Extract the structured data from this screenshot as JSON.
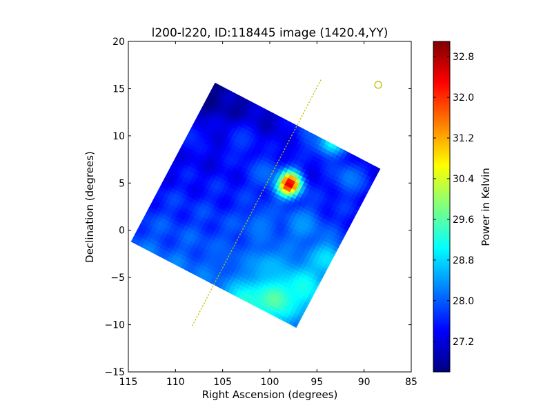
{
  "chart_data": {
    "type": "heatmap",
    "title": "l200-l220, ID:118445 image (1420.4,YY)",
    "xlabel": "Right Ascension (degrees)",
    "ylabel": "Declination (degrees)",
    "xlim": [
      115,
      85
    ],
    "ylim": [
      -15,
      20
    ],
    "xticks": [
      115,
      110,
      105,
      100,
      95,
      90,
      85
    ],
    "yticks": [
      -15,
      -10,
      -5,
      0,
      5,
      10,
      15,
      20
    ],
    "xtick_labels": [
      "115",
      "110",
      "105",
      "100",
      "95",
      "90",
      "85"
    ],
    "ytick_labels": [
      "−15",
      "−10",
      "−5",
      "0",
      "5",
      "10",
      "15",
      "20"
    ],
    "grid": false,
    "field_corners": [
      [
        105.8,
        15.6
      ],
      [
        88.3,
        6.5
      ],
      [
        97.3,
        -10.3
      ],
      [
        114.7,
        -1.2
      ]
    ],
    "hotspots": [
      {
        "ra": 98.0,
        "dec": 4.9,
        "value": 32.9,
        "sigma": 0.9
      },
      {
        "ra": 99.5,
        "dec": -7.0,
        "value": 29.9,
        "sigma": 1.6
      },
      {
        "ra": 96.5,
        "dec": -6.0,
        "value": 29.2,
        "sigma": 1.6
      },
      {
        "ra": 102.5,
        "dec": -7.5,
        "value": 29.3,
        "sigma": 1.4
      },
      {
        "ra": 93.5,
        "dec": 9.6,
        "value": 29.7,
        "sigma": 1.2
      },
      {
        "ra": 94.0,
        "dec": -3.0,
        "value": 28.9,
        "sigma": 1.3
      },
      {
        "ra": 100.0,
        "dec": -4.0,
        "value": 28.6,
        "sigma": 1.5
      },
      {
        "ra": 96.5,
        "dec": 0.5,
        "value": 28.4,
        "sigma": 1.4
      },
      {
        "ra": 101.0,
        "dec": 0.5,
        "value": 28.2,
        "sigma": 1.2
      },
      {
        "ra": 105.0,
        "dec": -3.0,
        "value": 28.0,
        "sigma": 1.4
      },
      {
        "ra": 91.5,
        "dec": 5.5,
        "value": 28.2,
        "sigma": 1.3
      },
      {
        "ra": 95.5,
        "dec": 10.5,
        "value": 28.0,
        "sigma": 1.5
      },
      {
        "ra": 103.0,
        "dec": 9.5,
        "value": 27.8,
        "sigma": 1.3
      },
      {
        "ra": 108.5,
        "dec": 10.0,
        "value": 27.7,
        "sigma": 1.3
      },
      {
        "ra": 100.5,
        "dec": 6.0,
        "value": 28.1,
        "sigma": 1.2
      }
    ],
    "galactic_plane_line": {
      "color": "#bfbf00",
      "style": "dotted",
      "points": [
        [
          108.2,
          -10.1
        ],
        [
          94.6,
          15.9
        ]
      ]
    },
    "source_marker": {
      "ra": 88.5,
      "dec": 15.4,
      "shape": "circle",
      "color": "#bfbf00"
    },
    "colorbar": {
      "label": "Power in Kelvin",
      "range": [
        26.6,
        33.1
      ],
      "ticks": [
        27.2,
        28.0,
        28.8,
        29.6,
        30.4,
        31.2,
        32.0,
        32.8
      ],
      "tick_labels": [
        "27.2",
        "28.0",
        "28.8",
        "29.6",
        "30.4",
        "31.2",
        "32.0",
        "32.8"
      ],
      "colormap": "jet"
    }
  }
}
